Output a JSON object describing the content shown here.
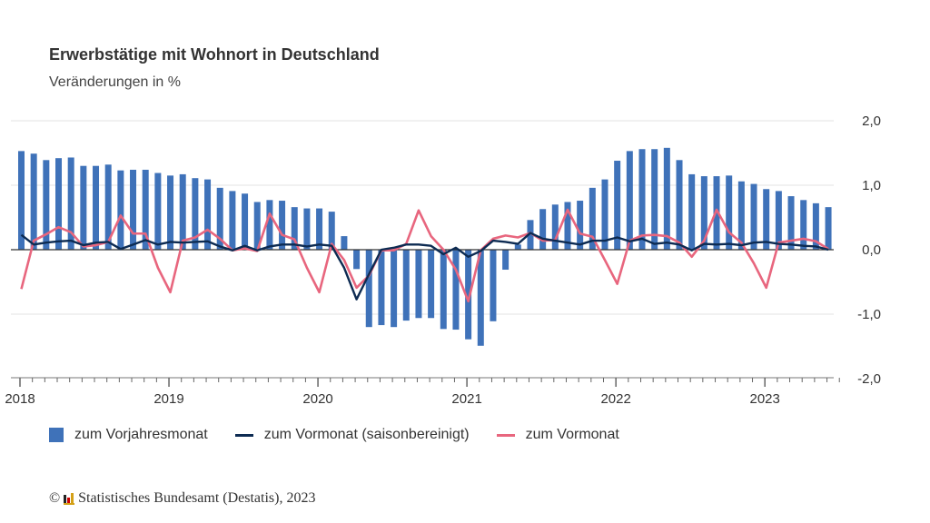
{
  "chart_data": {
    "type": "bar+line",
    "title": "Erwerbstätige mit Wohnort in Deutschland",
    "subtitle": "Veränderungen in %",
    "x_start": "2018-01",
    "x_end": "2023-06",
    "x_tick_labels": [
      "2018",
      "2019",
      "2020",
      "2021",
      "2022",
      "2023"
    ],
    "y_tick_labels": [
      "2,0",
      "1,0",
      "0,0",
      "-1,0",
      "-2,0"
    ],
    "y_ticks": [
      2,
      1,
      0,
      -1,
      -2
    ],
    "ylim": [
      -2,
      2
    ],
    "y_axis_side": "right",
    "grid": true,
    "legend_position": "bottom",
    "series": [
      {
        "name": "zum Vorjahresmonat",
        "kind": "bar",
        "color": "#3f72b9",
        "values": [
          1.53,
          1.49,
          1.39,
          1.42,
          1.43,
          1.3,
          1.3,
          1.32,
          1.23,
          1.24,
          1.24,
          1.19,
          1.15,
          1.17,
          1.11,
          1.09,
          0.96,
          0.91,
          0.87,
          0.74,
          0.77,
          0.76,
          0.66,
          0.64,
          0.64,
          0.59,
          0.21,
          -0.3,
          -1.2,
          -1.17,
          -1.2,
          -1.1,
          -1.06,
          -1.06,
          -1.23,
          -1.24,
          -1.39,
          -1.49,
          -1.11,
          -0.31,
          0.08,
          0.46,
          0.63,
          0.7,
          0.74,
          0.76,
          0.96,
          1.09,
          1.38,
          1.53,
          1.56,
          1.56,
          1.58,
          1.39,
          1.17,
          1.14,
          1.14,
          1.15,
          1.06,
          1.02,
          0.94,
          0.91,
          0.83,
          0.77,
          0.72,
          0.66
        ]
      },
      {
        "name": "zum Vormonat (saisonbereinigt)",
        "kind": "line",
        "color": "#0d2b52",
        "values": [
          0.23,
          0.08,
          0.11,
          0.13,
          0.14,
          0.07,
          0.11,
          0.12,
          0.01,
          0.08,
          0.15,
          0.08,
          0.12,
          0.11,
          0.12,
          0.13,
          0.05,
          -0.01,
          0.06,
          -0.01,
          0.05,
          0.08,
          0.08,
          0.05,
          0.08,
          0.06,
          -0.28,
          -0.77,
          -0.38,
          0.0,
          0.03,
          0.08,
          0.08,
          0.06,
          -0.07,
          0.03,
          -0.11,
          -0.02,
          0.14,
          0.12,
          0.09,
          0.26,
          0.17,
          0.14,
          0.11,
          0.08,
          0.14,
          0.14,
          0.19,
          0.13,
          0.17,
          0.09,
          0.11,
          0.08,
          -0.01,
          0.09,
          0.08,
          0.09,
          0.07,
          0.11,
          0.12,
          0.09,
          0.08,
          0.06,
          0.05,
          0.0
        ]
      },
      {
        "name": "zum Vormonat",
        "kind": "line",
        "color": "#e8667e",
        "values": [
          -0.61,
          0.14,
          0.24,
          0.35,
          0.27,
          0.05,
          0.07,
          0.12,
          0.53,
          0.25,
          0.25,
          -0.28,
          -0.66,
          0.14,
          0.19,
          0.31,
          0.17,
          -0.01,
          0.02,
          -0.02,
          0.56,
          0.23,
          0.16,
          -0.28,
          -0.66,
          0.09,
          -0.16,
          -0.59,
          -0.4,
          -0.01,
          -0.01,
          0.09,
          0.61,
          0.21,
          0.0,
          -0.31,
          -0.8,
          -0.01,
          0.17,
          0.22,
          0.19,
          0.26,
          0.14,
          0.15,
          0.62,
          0.25,
          0.2,
          -0.16,
          -0.53,
          0.14,
          0.22,
          0.23,
          0.21,
          0.11,
          -0.11,
          0.14,
          0.62,
          0.27,
          0.11,
          -0.21,
          -0.59,
          0.11,
          0.14,
          0.17,
          0.13,
          0.01
        ]
      }
    ]
  },
  "legend": {
    "items": [
      {
        "label": "zum Vorjahresmonat",
        "color": "#3f72b9"
      },
      {
        "label": "zum Vormonat (saisonbereinigt)",
        "color": "#0d2b52"
      },
      {
        "label": "zum Vormonat",
        "color": "#e8667e"
      }
    ]
  },
  "footer": {
    "copyright": "©",
    "source": "Statistisches Bundesamt (Destatis), 2023"
  }
}
